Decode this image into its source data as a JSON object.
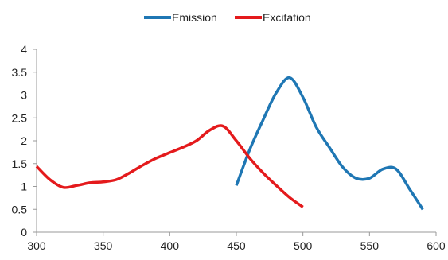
{
  "chart_data": {
    "type": "line",
    "title": "",
    "xlabel": "",
    "ylabel": "",
    "xlim": [
      300,
      600
    ],
    "ylim": [
      0,
      4
    ],
    "x_ticks": [
      300,
      350,
      400,
      450,
      500,
      550,
      600
    ],
    "y_ticks": [
      0,
      0.5,
      1,
      1.5,
      2,
      2.5,
      3,
      3.5,
      4
    ],
    "y_tick_labels": [
      "0",
      "0.5",
      "1",
      "1.5",
      "2",
      "2.5",
      "3",
      "3.5",
      "4"
    ],
    "grid": false,
    "legend_position": "top",
    "series": [
      {
        "name": "Emission",
        "color": "#1F77B4",
        "x": [
          450,
          460,
          470,
          480,
          490,
          500,
          510,
          520,
          530,
          540,
          550,
          560,
          570,
          580,
          590
        ],
        "y": [
          1.02,
          1.8,
          2.45,
          3.05,
          3.38,
          2.95,
          2.3,
          1.85,
          1.42,
          1.18,
          1.18,
          1.38,
          1.38,
          0.95,
          0.5
        ]
      },
      {
        "name": "Excitation",
        "color": "#E41A1C",
        "x": [
          300,
          310,
          320,
          330,
          340,
          350,
          360,
          370,
          380,
          390,
          400,
          410,
          420,
          430,
          440,
          450,
          460,
          470,
          480,
          490,
          500
        ],
        "y": [
          1.44,
          1.15,
          0.98,
          1.02,
          1.08,
          1.1,
          1.15,
          1.3,
          1.47,
          1.62,
          1.74,
          1.86,
          2.0,
          2.23,
          2.32,
          2.0,
          1.62,
          1.3,
          1.02,
          0.76,
          0.55
        ]
      }
    ]
  }
}
